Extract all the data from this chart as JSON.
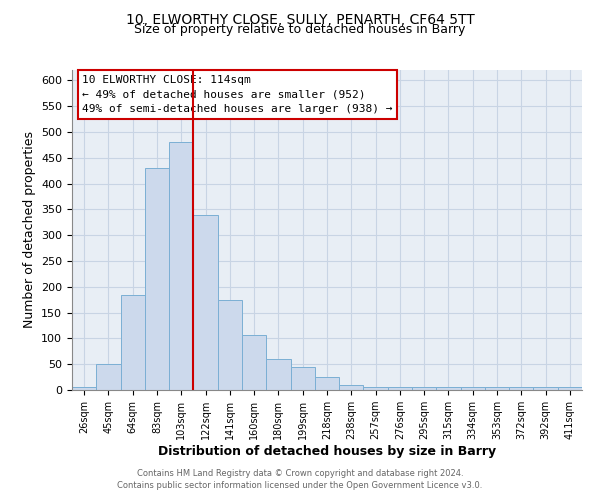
{
  "title": "10, ELWORTHY CLOSE, SULLY, PENARTH, CF64 5TT",
  "subtitle": "Size of property relative to detached houses in Barry",
  "xlabel": "Distribution of detached houses by size in Barry",
  "ylabel": "Number of detached properties",
  "bar_labels": [
    "26sqm",
    "45sqm",
    "64sqm",
    "83sqm",
    "103sqm",
    "122sqm",
    "141sqm",
    "160sqm",
    "180sqm",
    "199sqm",
    "218sqm",
    "238sqm",
    "257sqm",
    "276sqm",
    "295sqm",
    "315sqm",
    "334sqm",
    "353sqm",
    "372sqm",
    "392sqm",
    "411sqm"
  ],
  "bar_values": [
    5,
    50,
    185,
    430,
    480,
    340,
    175,
    107,
    60,
    45,
    25,
    10,
    5,
    5,
    5,
    5,
    5,
    5,
    5,
    5,
    5
  ],
  "bar_color": "#ccd9ec",
  "bar_edge_color": "#7bafd4",
  "vline_x_index": 5,
  "vline_color": "#cc0000",
  "ylim": [
    0,
    620
  ],
  "yticks": [
    0,
    50,
    100,
    150,
    200,
    250,
    300,
    350,
    400,
    450,
    500,
    550,
    600
  ],
  "annotation_title": "10 ELWORTHY CLOSE: 114sqm",
  "annotation_line1": "← 49% of detached houses are smaller (952)",
  "annotation_line2": "49% of semi-detached houses are larger (938) →",
  "footer_line1": "Contains HM Land Registry data © Crown copyright and database right 2024.",
  "footer_line2": "Contains public sector information licensed under the Open Government Licence v3.0.",
  "background_color": "#ffffff",
  "plot_bg_color": "#e8eef5",
  "grid_color": "#c8d4e4",
  "title_fontsize": 10,
  "subtitle_fontsize": 9,
  "axis_label_fontsize": 9
}
